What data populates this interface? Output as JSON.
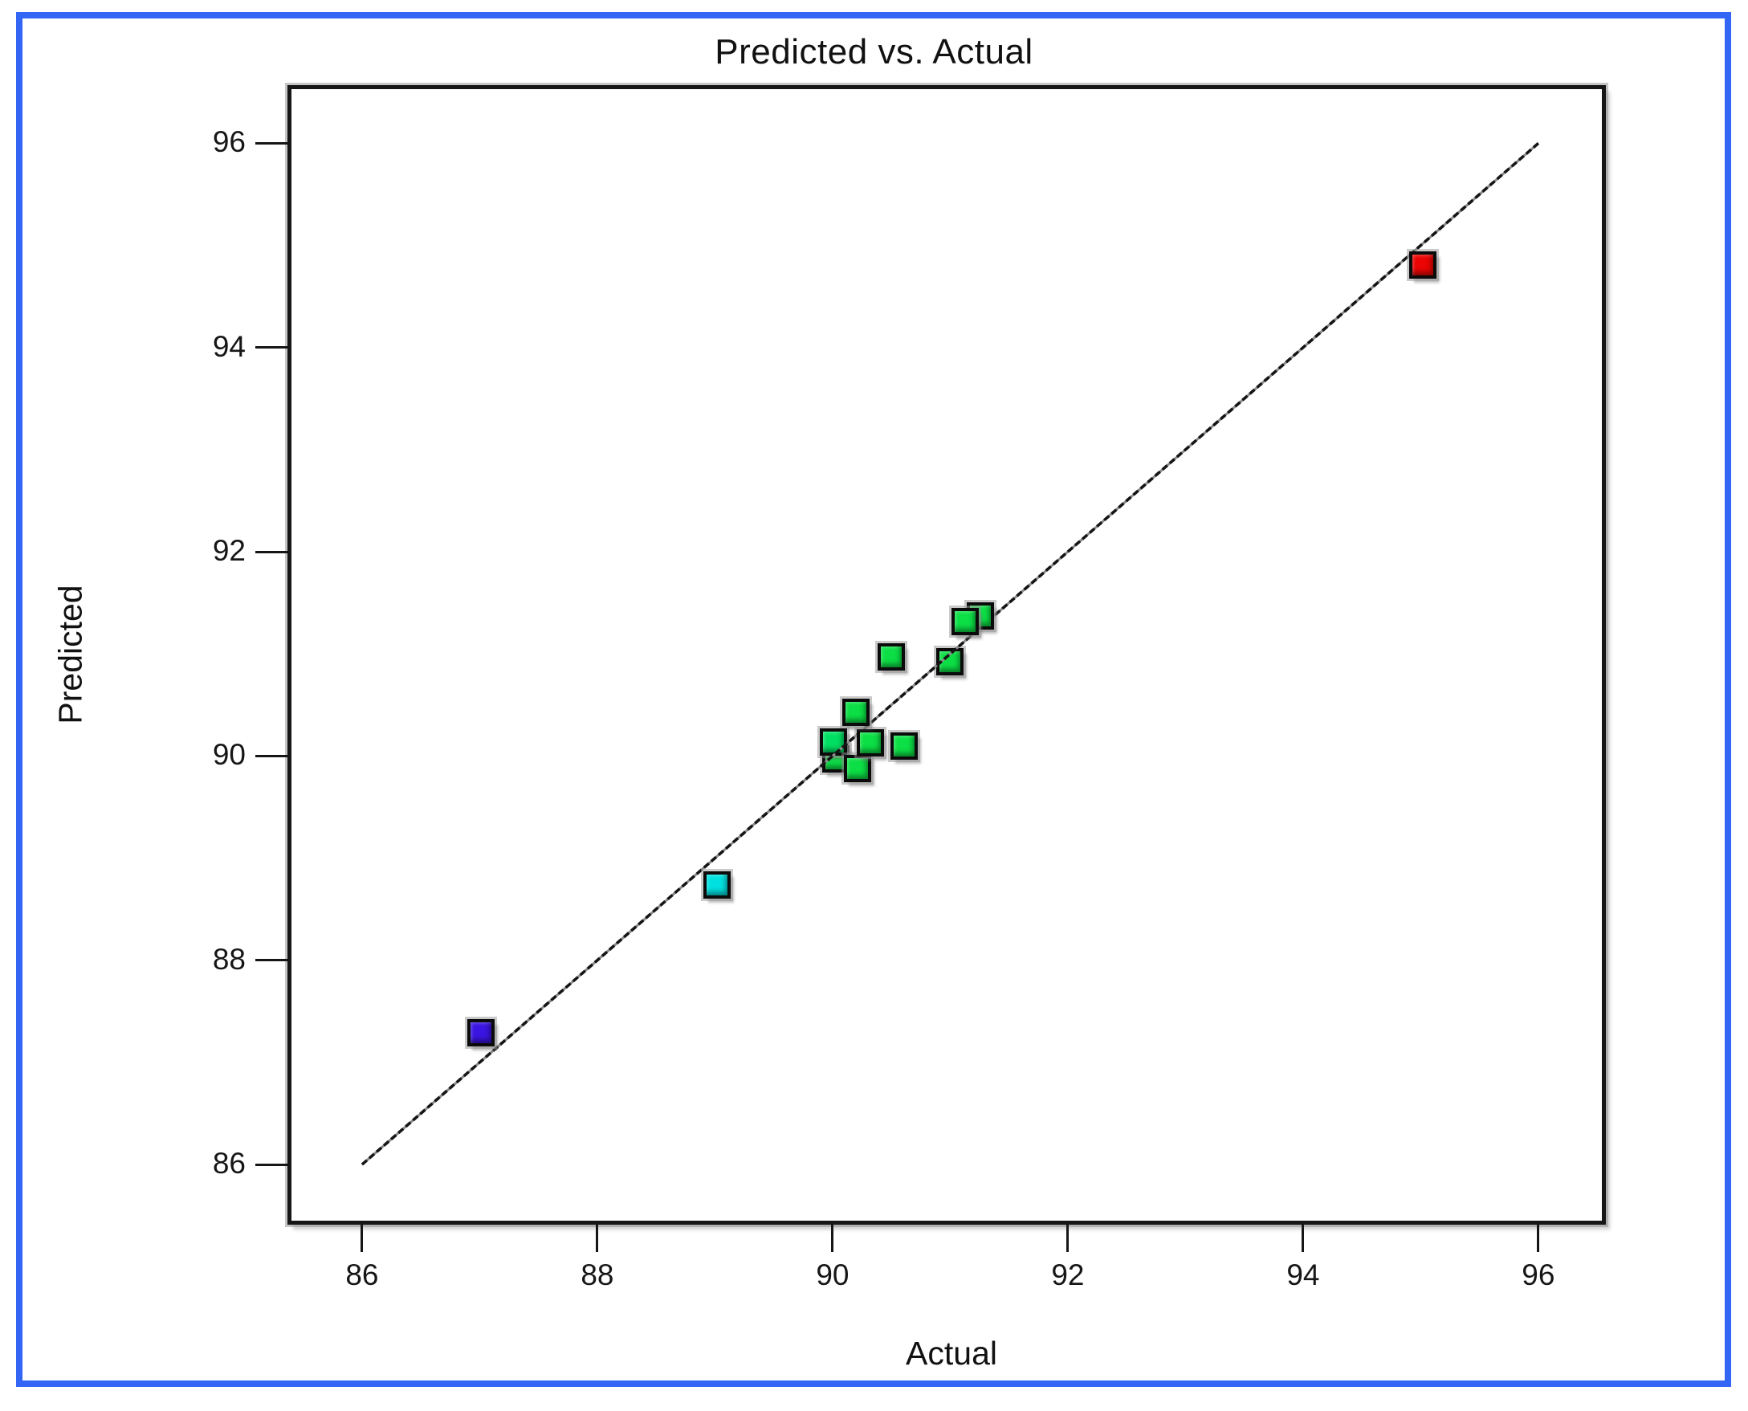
{
  "window": {
    "frame_border_color": "#3366f5",
    "background_color": "#ffffff"
  },
  "chart": {
    "title": "Predicted vs. Actual",
    "xlabel": "Actual",
    "ylabel": "Predicted"
  },
  "chart_data": {
    "type": "scatter",
    "title": "Predicted vs. Actual",
    "xlabel": "Actual",
    "ylabel": "Predicted",
    "xlim": [
      85.4,
      96.54
    ],
    "ylim": [
      85.45,
      96.53
    ],
    "x_ticks": [
      86,
      88,
      90,
      92,
      94,
      96
    ],
    "y_ticks": [
      86,
      88,
      90,
      92,
      94,
      96
    ],
    "grid": false,
    "legend": false,
    "reference_line": {
      "x1": 86,
      "y1": 86,
      "x2": 96,
      "y2": 96,
      "color": "#151515"
    },
    "marker_shape": "square",
    "points": [
      {
        "actual": 91.26,
        "predicted": 91.37,
        "color": "#0cdf45",
        "under_line": false
      },
      {
        "actual": 90.03,
        "predicted": 89.97,
        "color": "#0cdf45",
        "under_line": true
      },
      {
        "actual": 90.01,
        "predicted": 90.14,
        "color": "#00df63",
        "under_line": true
      },
      {
        "actual": 90.21,
        "predicted": 89.88,
        "color": "#0cdf45",
        "under_line": false
      },
      {
        "actual": 90.32,
        "predicted": 90.13,
        "color": "#0cdf45",
        "under_line": false
      },
      {
        "actual": 90.61,
        "predicted": 90.1,
        "color": "#0cdf45",
        "under_line": false
      },
      {
        "actual": 90.2,
        "predicted": 90.43,
        "color": "#0cdf45",
        "under_line": false
      },
      {
        "actual": 90.5,
        "predicted": 90.97,
        "color": "#0cdf45",
        "under_line": false
      },
      {
        "actual": 91.0,
        "predicted": 90.92,
        "color": "#0cdf45",
        "under_line": true
      },
      {
        "actual": 91.13,
        "predicted": 91.32,
        "color": "#0cdf45",
        "under_line": false
      },
      {
        "actual": 89.02,
        "predicted": 88.74,
        "color": "#00e0e0",
        "under_line": false
      },
      {
        "actual": 87.01,
        "predicted": 87.29,
        "color": "#3a14e0",
        "under_line": false
      },
      {
        "actual": 95.02,
        "predicted": 94.81,
        "color": "#ec0404",
        "under_line": false
      }
    ]
  }
}
